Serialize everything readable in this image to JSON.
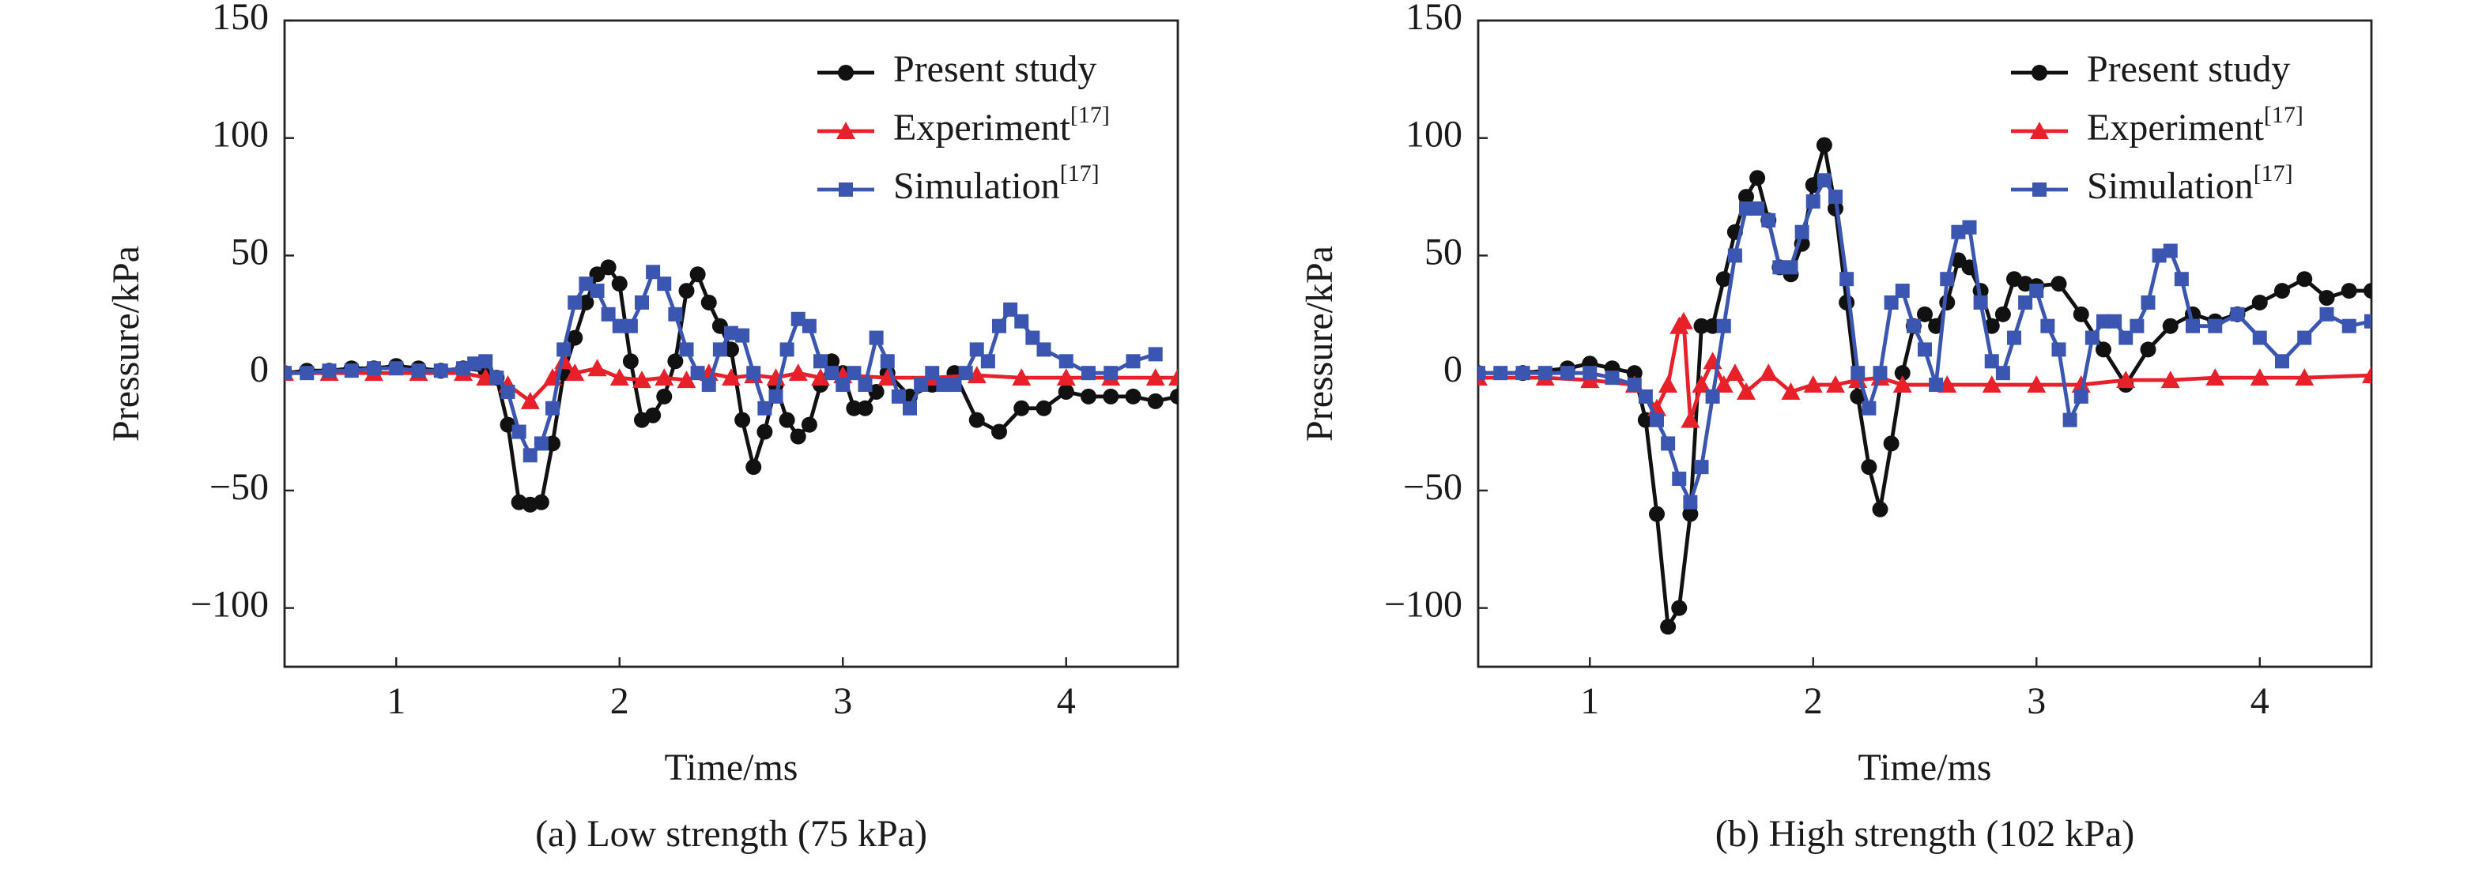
{
  "chart_data": [
    {
      "type": "line",
      "caption": "(a) Low strength (75 kPa)",
      "xlabel": "Time/ms",
      "ylabel": "Pressure/kPa",
      "xlim": [
        0.5,
        4.5
      ],
      "ylim": [
        -125,
        150
      ],
      "xticks": [
        1,
        2,
        3,
        4
      ],
      "yticks": [
        {
          "value": -100,
          "label": "−100"
        },
        {
          "value": -50,
          "label": "−50"
        },
        0,
        50,
        100,
        150
      ],
      "grid": false,
      "legend": "upper right",
      "series": [
        {
          "name": "Present study",
          "color": "#111111",
          "marker": "circle",
          "x": [
            0.5,
            0.6,
            0.7,
            0.8,
            0.9,
            1.0,
            1.1,
            1.2,
            1.3,
            1.4,
            1.45,
            1.5,
            1.55,
            1.6,
            1.65,
            1.7,
            1.75,
            1.8,
            1.85,
            1.9,
            1.95,
            2.0,
            2.05,
            2.1,
            2.15,
            2.2,
            2.25,
            2.3,
            2.35,
            2.4,
            2.45,
            2.5,
            2.55,
            2.6,
            2.65,
            2.7,
            2.75,
            2.8,
            2.85,
            2.9,
            2.95,
            3.0,
            3.05,
            3.1,
            3.15,
            3.2,
            3.3,
            3.4,
            3.5,
            3.6,
            3.7,
            3.8,
            3.9,
            4.0,
            4.1,
            4.2,
            4.3,
            4.4,
            4.5
          ],
          "values": [
            0,
            1,
            1,
            2,
            2,
            3,
            2,
            1,
            2,
            1,
            -2,
            -22,
            -55,
            -56,
            -55,
            -30,
            0,
            15,
            30,
            42,
            45,
            38,
            5,
            -20,
            -18,
            -10,
            5,
            35,
            42,
            30,
            20,
            10,
            -20,
            -40,
            -25,
            -5,
            -20,
            -27,
            -22,
            -5,
            5,
            0,
            -15,
            -15,
            -8,
            0,
            -10,
            -5,
            0,
            -20,
            -25,
            -15,
            -15,
            -8,
            -10,
            -10,
            -10,
            -12,
            -10
          ]
        },
        {
          "name": "Experiment[17]",
          "color": "#e8202a",
          "marker": "triangle",
          "x": [
            0.5,
            0.7,
            0.9,
            1.1,
            1.3,
            1.4,
            1.5,
            1.6,
            1.7,
            1.75,
            1.8,
            1.9,
            2.0,
            2.1,
            2.2,
            2.3,
            2.4,
            2.5,
            2.6,
            2.7,
            2.8,
            2.9,
            3.0,
            3.2,
            3.4,
            3.6,
            3.8,
            4.0,
            4.2,
            4.4,
            4.5
          ],
          "values": [
            0,
            0,
            0,
            0,
            0,
            -2,
            -5,
            -12,
            -2,
            5,
            0,
            2,
            -2,
            -3,
            -2,
            -3,
            0,
            -2,
            -1,
            -2,
            0,
            -2,
            -1,
            -2,
            -2,
            -1,
            -2,
            -2,
            -2,
            -2,
            -2
          ]
        },
        {
          "name": "Simulation[17]",
          "color": "#3a56b0",
          "marker": "square",
          "x": [
            0.5,
            0.6,
            0.7,
            0.8,
            0.9,
            1.0,
            1.1,
            1.2,
            1.3,
            1.35,
            1.4,
            1.45,
            1.5,
            1.55,
            1.6,
            1.65,
            1.7,
            1.75,
            1.8,
            1.85,
            1.9,
            1.95,
            2.0,
            2.05,
            2.1,
            2.15,
            2.2,
            2.25,
            2.3,
            2.35,
            2.4,
            2.45,
            2.5,
            2.55,
            2.6,
            2.65,
            2.7,
            2.75,
            2.8,
            2.85,
            2.9,
            2.95,
            3.0,
            3.05,
            3.1,
            3.15,
            3.2,
            3.25,
            3.3,
            3.35,
            3.4,
            3.45,
            3.5,
            3.55,
            3.6,
            3.65,
            3.7,
            3.75,
            3.8,
            3.85,
            3.9,
            4.0,
            4.1,
            4.2,
            4.3,
            4.4
          ],
          "values": [
            0,
            0,
            1,
            1,
            2,
            2,
            1,
            1,
            2,
            4,
            5,
            -2,
            -8,
            -25,
            -35,
            -30,
            -15,
            10,
            30,
            38,
            35,
            25,
            20,
            20,
            30,
            43,
            38,
            25,
            10,
            0,
            -5,
            10,
            17,
            16,
            0,
            -15,
            -10,
            10,
            23,
            20,
            5,
            0,
            -5,
            0,
            -5,
            15,
            5,
            -10,
            -15,
            -5,
            0,
            -5,
            -5,
            0,
            10,
            5,
            20,
            27,
            22,
            15,
            10,
            5,
            0,
            0,
            5,
            8
          ]
        }
      ]
    },
    {
      "type": "line",
      "caption": "(b) High strength (102 kPa)",
      "xlabel": "Time/ms",
      "ylabel": "Pressure/kPa",
      "xlim": [
        0.5,
        4.5
      ],
      "ylim": [
        -125,
        150
      ],
      "xticks": [
        1,
        2,
        3,
        4
      ],
      "yticks": [
        {
          "value": -100,
          "label": "−100"
        },
        {
          "value": -50,
          "label": "−50"
        },
        0,
        50,
        100,
        150
      ],
      "grid": false,
      "legend": "upper right",
      "series": [
        {
          "name": "Present study",
          "color": "#111111",
          "marker": "circle",
          "x": [
            0.5,
            0.7,
            0.9,
            1.0,
            1.1,
            1.2,
            1.25,
            1.3,
            1.35,
            1.4,
            1.45,
            1.5,
            1.55,
            1.6,
            1.65,
            1.7,
            1.75,
            1.8,
            1.85,
            1.9,
            1.95,
            2.0,
            2.05,
            2.1,
            2.15,
            2.2,
            2.25,
            2.3,
            2.35,
            2.4,
            2.45,
            2.5,
            2.55,
            2.6,
            2.65,
            2.7,
            2.75,
            2.8,
            2.85,
            2.9,
            2.95,
            3.0,
            3.1,
            3.2,
            3.3,
            3.4,
            3.5,
            3.6,
            3.7,
            3.8,
            3.9,
            4.0,
            4.1,
            4.2,
            4.3,
            4.4,
            4.5
          ],
          "values": [
            0,
            0,
            2,
            4,
            2,
            0,
            -20,
            -60,
            -108,
            -100,
            -60,
            20,
            20,
            40,
            60,
            75,
            83,
            65,
            45,
            42,
            55,
            80,
            97,
            70,
            30,
            -10,
            -40,
            -58,
            -30,
            0,
            20,
            25,
            20,
            30,
            48,
            45,
            35,
            20,
            25,
            40,
            38,
            37,
            38,
            25,
            10,
            -5,
            10,
            20,
            25,
            22,
            25,
            30,
            35,
            40,
            32,
            35,
            35
          ]
        },
        {
          "name": "Experiment[17]",
          "color": "#e8202a",
          "marker": "triangle",
          "x": [
            0.5,
            0.8,
            1.0,
            1.2,
            1.3,
            1.35,
            1.4,
            1.42,
            1.45,
            1.5,
            1.55,
            1.6,
            1.65,
            1.7,
            1.8,
            1.9,
            2.0,
            2.1,
            2.2,
            2.3,
            2.4,
            2.6,
            2.8,
            3.0,
            3.2,
            3.4,
            3.6,
            3.8,
            4.0,
            4.2,
            4.5
          ],
          "values": [
            -2,
            -2,
            -3,
            -5,
            -15,
            -5,
            20,
            22,
            -20,
            -5,
            5,
            -5,
            0,
            -8,
            0,
            -8,
            -5,
            -5,
            -3,
            -2,
            -5,
            -5,
            -5,
            -5,
            -5,
            -3,
            -3,
            -2,
            -2,
            -2,
            -1
          ]
        },
        {
          "name": "Simulation[17]",
          "color": "#3a56b0",
          "marker": "square",
          "x": [
            0.5,
            0.6,
            0.7,
            0.8,
            0.9,
            1.0,
            1.1,
            1.2,
            1.25,
            1.3,
            1.35,
            1.4,
            1.45,
            1.5,
            1.55,
            1.6,
            1.65,
            1.7,
            1.75,
            1.8,
            1.85,
            1.9,
            1.95,
            2.0,
            2.05,
            2.1,
            2.15,
            2.2,
            2.25,
            2.3,
            2.35,
            2.4,
            2.45,
            2.5,
            2.55,
            2.6,
            2.65,
            2.7,
            2.75,
            2.8,
            2.85,
            2.9,
            2.95,
            3.0,
            3.05,
            3.1,
            3.15,
            3.2,
            3.25,
            3.3,
            3.35,
            3.4,
            3.45,
            3.5,
            3.55,
            3.6,
            3.65,
            3.7,
            3.8,
            3.9,
            4.0,
            4.1,
            4.2,
            4.3,
            4.4,
            4.5
          ],
          "values": [
            0,
            0,
            0,
            0,
            0,
            0,
            -2,
            -5,
            -10,
            -20,
            -30,
            -45,
            -55,
            -40,
            -10,
            20,
            50,
            70,
            70,
            65,
            45,
            45,
            60,
            73,
            82,
            75,
            40,
            0,
            -15,
            0,
            30,
            35,
            20,
            10,
            -5,
            40,
            60,
            62,
            30,
            5,
            0,
            15,
            30,
            35,
            20,
            10,
            -20,
            -10,
            15,
            22,
            22,
            15,
            20,
            30,
            50,
            52,
            40,
            20,
            20,
            25,
            15,
            5,
            15,
            25,
            20,
            22
          ]
        }
      ]
    }
  ]
}
